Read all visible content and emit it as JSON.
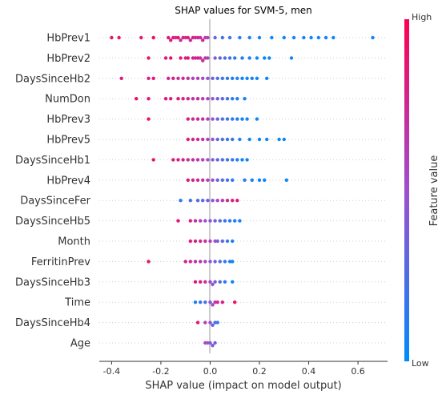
{
  "chart_data": {
    "type": "scatter",
    "title": "SHAP values for SVM-5, men",
    "xlabel": "SHAP value (impact on model output)",
    "ylabel": "",
    "xlim": [
      -0.45,
      0.72
    ],
    "xticks": [
      "-0.4",
      "-0.2",
      "0.0",
      "0.2",
      "0.4",
      "0.6"
    ],
    "xtick_values": [
      -0.4,
      -0.2,
      0.0,
      0.2,
      0.4,
      0.6
    ],
    "features": [
      "HbPrev1",
      "HbPrev2",
      "DaysSinceHb2",
      "NumDon",
      "HbPrev3",
      "HbPrev5",
      "DaysSinceHb1",
      "HbPrev4",
      "DaysSinceFer",
      "DaysSinceHb5",
      "Month",
      "FerritinPrev",
      "DaysSinceHb3",
      "Time",
      "DaysSinceHb4",
      "Age"
    ],
    "colorbar": {
      "label": "Feature value",
      "high_label": "High",
      "low_label": "Low",
      "high_color": "#ff0052",
      "low_color": "#008bfb"
    },
    "grid": false,
    "series": [
      {
        "feature": "HbPrev1",
        "points": [
          [
            -0.4,
            0.9
          ],
          [
            -0.37,
            0.9
          ],
          [
            -0.28,
            0.85
          ],
          [
            -0.23,
            0.95
          ],
          [
            -0.17,
            0.85
          ],
          [
            -0.16,
            0.8
          ],
          [
            -0.15,
            0.85
          ],
          [
            -0.14,
            0.75
          ],
          [
            -0.13,
            0.9
          ],
          [
            -0.12,
            0.7
          ],
          [
            -0.11,
            0.8
          ],
          [
            -0.1,
            0.75
          ],
          [
            -0.09,
            0.85
          ],
          [
            -0.08,
            0.7
          ],
          [
            -0.07,
            0.8
          ],
          [
            -0.06,
            0.75
          ],
          [
            -0.05,
            0.8
          ],
          [
            -0.04,
            0.7
          ],
          [
            -0.03,
            0.75
          ],
          [
            -0.02,
            0.65
          ],
          [
            -0.01,
            0.6
          ],
          [
            0.02,
            0.3
          ],
          [
            0.05,
            0.2
          ],
          [
            0.08,
            0.2
          ],
          [
            0.12,
            0.1
          ],
          [
            0.16,
            0.1
          ],
          [
            0.2,
            0.05
          ],
          [
            0.25,
            0.05
          ],
          [
            0.3,
            0.05
          ],
          [
            0.34,
            0.05
          ],
          [
            0.38,
            0.05
          ],
          [
            0.41,
            0.05
          ],
          [
            0.44,
            0.05
          ],
          [
            0.47,
            0.05
          ],
          [
            0.5,
            0.05
          ],
          [
            0.66,
            0.05
          ]
        ]
      },
      {
        "feature": "HbPrev2",
        "points": [
          [
            -0.25,
            0.9
          ],
          [
            -0.18,
            0.85
          ],
          [
            -0.16,
            0.9
          ],
          [
            -0.12,
            0.85
          ],
          [
            -0.1,
            0.8
          ],
          [
            -0.09,
            0.85
          ],
          [
            -0.07,
            0.8
          ],
          [
            -0.06,
            0.75
          ],
          [
            -0.05,
            0.8
          ],
          [
            -0.04,
            0.7
          ],
          [
            -0.03,
            0.75
          ],
          [
            -0.02,
            0.65
          ],
          [
            -0.01,
            0.6
          ],
          [
            0.02,
            0.4
          ],
          [
            0.04,
            0.3
          ],
          [
            0.06,
            0.25
          ],
          [
            0.08,
            0.2
          ],
          [
            0.1,
            0.15
          ],
          [
            0.13,
            0.1
          ],
          [
            0.16,
            0.1
          ],
          [
            0.19,
            0.05
          ],
          [
            0.22,
            0.05
          ],
          [
            0.24,
            0.05
          ],
          [
            0.33,
            0.05
          ]
        ]
      },
      {
        "feature": "DaysSinceHb2",
        "points": [
          [
            -0.36,
            0.85
          ],
          [
            -0.25,
            0.8
          ],
          [
            -0.23,
            0.85
          ],
          [
            -0.17,
            0.75
          ],
          [
            -0.15,
            0.8
          ],
          [
            -0.13,
            0.7
          ],
          [
            -0.11,
            0.75
          ],
          [
            -0.09,
            0.7
          ],
          [
            -0.07,
            0.6
          ],
          [
            -0.05,
            0.6
          ],
          [
            -0.03,
            0.55
          ],
          [
            -0.01,
            0.45
          ],
          [
            0.01,
            0.35
          ],
          [
            0.03,
            0.25
          ],
          [
            0.05,
            0.2
          ],
          [
            0.07,
            0.15
          ],
          [
            0.09,
            0.1
          ],
          [
            0.11,
            0.1
          ],
          [
            0.13,
            0.05
          ],
          [
            0.15,
            0.05
          ],
          [
            0.17,
            0.05
          ],
          [
            0.19,
            0.05
          ],
          [
            0.23,
            0.05
          ]
        ]
      },
      {
        "feature": "NumDon",
        "points": [
          [
            -0.3,
            0.9
          ],
          [
            -0.25,
            0.85
          ],
          [
            -0.18,
            0.85
          ],
          [
            -0.16,
            0.8
          ],
          [
            -0.13,
            0.85
          ],
          [
            -0.11,
            0.8
          ],
          [
            -0.09,
            0.75
          ],
          [
            -0.07,
            0.7
          ],
          [
            -0.05,
            0.7
          ],
          [
            -0.03,
            0.65
          ],
          [
            -0.01,
            0.55
          ],
          [
            0.01,
            0.45
          ],
          [
            0.03,
            0.35
          ],
          [
            0.05,
            0.3
          ],
          [
            0.07,
            0.2
          ],
          [
            0.09,
            0.15
          ],
          [
            0.11,
            0.1
          ],
          [
            0.14,
            0.05
          ]
        ]
      },
      {
        "feature": "HbPrev3",
        "points": [
          [
            -0.25,
            0.9
          ],
          [
            -0.09,
            0.8
          ],
          [
            -0.07,
            0.75
          ],
          [
            -0.05,
            0.75
          ],
          [
            -0.03,
            0.7
          ],
          [
            -0.01,
            0.6
          ],
          [
            0.01,
            0.45
          ],
          [
            0.03,
            0.35
          ],
          [
            0.05,
            0.25
          ],
          [
            0.07,
            0.2
          ],
          [
            0.09,
            0.15
          ],
          [
            0.11,
            0.1
          ],
          [
            0.13,
            0.05
          ],
          [
            0.15,
            0.05
          ],
          [
            0.19,
            0.05
          ]
        ]
      },
      {
        "feature": "HbPrev5",
        "points": [
          [
            -0.09,
            0.85
          ],
          [
            -0.07,
            0.8
          ],
          [
            -0.05,
            0.75
          ],
          [
            -0.03,
            0.7
          ],
          [
            -0.01,
            0.6
          ],
          [
            0.01,
            0.45
          ],
          [
            0.03,
            0.35
          ],
          [
            0.05,
            0.25
          ],
          [
            0.07,
            0.2
          ],
          [
            0.09,
            0.15
          ],
          [
            0.12,
            0.1
          ],
          [
            0.16,
            0.05
          ],
          [
            0.2,
            0.05
          ],
          [
            0.23,
            0.05
          ],
          [
            0.28,
            0.05
          ],
          [
            0.3,
            0.05
          ]
        ]
      },
      {
        "feature": "DaysSinceHb1",
        "points": [
          [
            -0.23,
            0.9
          ],
          [
            -0.15,
            0.85
          ],
          [
            -0.13,
            0.8
          ],
          [
            -0.11,
            0.8
          ],
          [
            -0.09,
            0.75
          ],
          [
            -0.07,
            0.7
          ],
          [
            -0.05,
            0.65
          ],
          [
            -0.03,
            0.6
          ],
          [
            -0.01,
            0.5
          ],
          [
            0.01,
            0.4
          ],
          [
            0.03,
            0.3
          ],
          [
            0.05,
            0.25
          ],
          [
            0.07,
            0.2
          ],
          [
            0.09,
            0.15
          ],
          [
            0.11,
            0.1
          ],
          [
            0.13,
            0.05
          ],
          [
            0.15,
            0.05
          ]
        ]
      },
      {
        "feature": "HbPrev4",
        "points": [
          [
            -0.09,
            0.85
          ],
          [
            -0.07,
            0.8
          ],
          [
            -0.05,
            0.75
          ],
          [
            -0.03,
            0.7
          ],
          [
            -0.01,
            0.6
          ],
          [
            0.01,
            0.45
          ],
          [
            0.03,
            0.35
          ],
          [
            0.05,
            0.25
          ],
          [
            0.07,
            0.2
          ],
          [
            0.09,
            0.15
          ],
          [
            0.14,
            0.1
          ],
          [
            0.17,
            0.05
          ],
          [
            0.2,
            0.05
          ],
          [
            0.22,
            0.05
          ],
          [
            0.31,
            0.05
          ]
        ]
      },
      {
        "feature": "DaysSinceFer",
        "points": [
          [
            -0.12,
            0.15
          ],
          [
            -0.08,
            0.2
          ],
          [
            -0.05,
            0.25
          ],
          [
            -0.03,
            0.3
          ],
          [
            -0.01,
            0.35
          ],
          [
            0.01,
            0.45
          ],
          [
            0.03,
            0.55
          ],
          [
            0.05,
            0.65
          ],
          [
            0.07,
            0.75
          ],
          [
            0.09,
            0.8
          ],
          [
            0.11,
            0.85
          ]
        ]
      },
      {
        "feature": "DaysSinceHb5",
        "points": [
          [
            -0.13,
            0.85
          ],
          [
            -0.08,
            0.8
          ],
          [
            -0.06,
            0.7
          ],
          [
            -0.04,
            0.6
          ],
          [
            -0.02,
            0.5
          ],
          [
            0.0,
            0.45
          ],
          [
            0.02,
            0.35
          ],
          [
            0.04,
            0.25
          ],
          [
            0.06,
            0.2
          ],
          [
            0.08,
            0.15
          ],
          [
            0.1,
            0.1
          ],
          [
            0.12,
            0.05
          ]
        ]
      },
      {
        "feature": "Month",
        "points": [
          [
            -0.08,
            0.85
          ],
          [
            -0.06,
            0.8
          ],
          [
            -0.04,
            0.75
          ],
          [
            -0.02,
            0.7
          ],
          [
            0.0,
            0.6
          ],
          [
            0.02,
            0.5
          ],
          [
            0.03,
            0.4
          ],
          [
            0.05,
            0.3
          ],
          [
            0.07,
            0.2
          ],
          [
            0.09,
            0.1
          ]
        ]
      },
      {
        "feature": "FerritinPrev",
        "points": [
          [
            -0.25,
            0.9
          ],
          [
            -0.1,
            0.8
          ],
          [
            -0.08,
            0.75
          ],
          [
            -0.06,
            0.7
          ],
          [
            -0.04,
            0.65
          ],
          [
            -0.02,
            0.55
          ],
          [
            0.0,
            0.45
          ],
          [
            0.02,
            0.35
          ],
          [
            0.04,
            0.25
          ],
          [
            0.06,
            0.15
          ],
          [
            0.08,
            0.1
          ],
          [
            0.09,
            0.05
          ]
        ]
      },
      {
        "feature": "DaysSinceHb3",
        "points": [
          [
            -0.06,
            0.85
          ],
          [
            -0.04,
            0.8
          ],
          [
            -0.02,
            0.7
          ],
          [
            0.0,
            0.55
          ],
          [
            0.01,
            0.45
          ],
          [
            0.02,
            0.35
          ],
          [
            0.04,
            0.25
          ],
          [
            0.06,
            0.15
          ],
          [
            0.09,
            0.05
          ]
        ]
      },
      {
        "feature": "Time",
        "points": [
          [
            -0.06,
            0.1
          ],
          [
            -0.04,
            0.15
          ],
          [
            -0.02,
            0.25
          ],
          [
            0.0,
            0.4
          ],
          [
            0.01,
            0.55
          ],
          [
            0.02,
            0.65
          ],
          [
            0.03,
            0.75
          ],
          [
            0.05,
            0.8
          ],
          [
            0.1,
            0.9
          ]
        ]
      },
      {
        "feature": "DaysSinceHb4",
        "points": [
          [
            -0.05,
            0.85
          ],
          [
            -0.02,
            0.6
          ],
          [
            0.0,
            0.45
          ],
          [
            0.01,
            0.35
          ],
          [
            0.02,
            0.25
          ],
          [
            0.03,
            0.15
          ]
        ]
      },
      {
        "feature": "Age",
        "points": [
          [
            -0.02,
            0.55
          ],
          [
            -0.01,
            0.5
          ],
          [
            0.0,
            0.45
          ],
          [
            0.01,
            0.4
          ],
          [
            0.02,
            0.35
          ]
        ]
      }
    ]
  }
}
